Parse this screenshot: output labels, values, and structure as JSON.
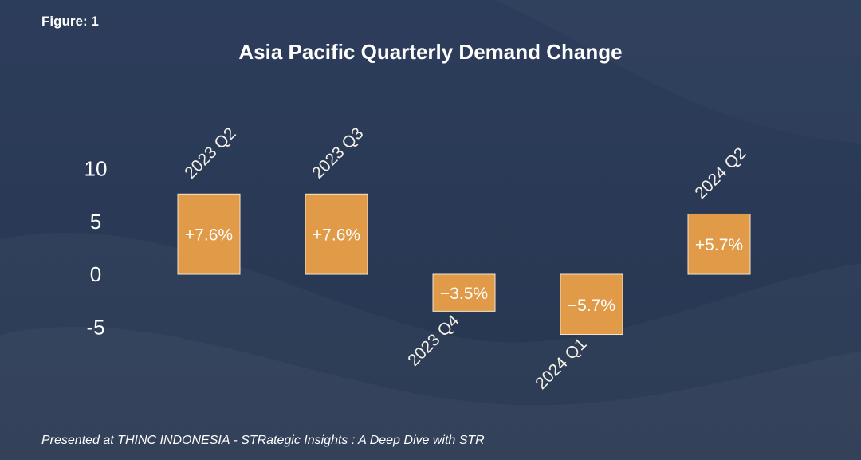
{
  "figure_label": "Figure: 1",
  "footer": "Presented at THINC INDONESIA -  STRategic Insights : A Deep Dive with STR",
  "colors": {
    "background": "#2a3a56",
    "bar": "#e09a48",
    "text": "#ffffff"
  },
  "chart_data": {
    "type": "bar",
    "title": "Asia Pacific Quarterly Demand Change",
    "xlabel": "",
    "ylabel": "",
    "categories": [
      "2023 Q2",
      "2023 Q3",
      "2023 Q4",
      "2024 Q1",
      "2024 Q2"
    ],
    "values": [
      7.6,
      7.6,
      -3.5,
      -5.7,
      5.7
    ],
    "data_labels": [
      "+7.6%",
      "+7.6%",
      "−3.5%",
      "−5.7%",
      "+5.7%"
    ],
    "yticks": [
      10,
      5,
      0,
      -5
    ],
    "ytick_labels": [
      "10",
      "5",
      "0",
      "-5"
    ],
    "ylim": [
      -5,
      10
    ],
    "grid": false,
    "legend": "none"
  }
}
